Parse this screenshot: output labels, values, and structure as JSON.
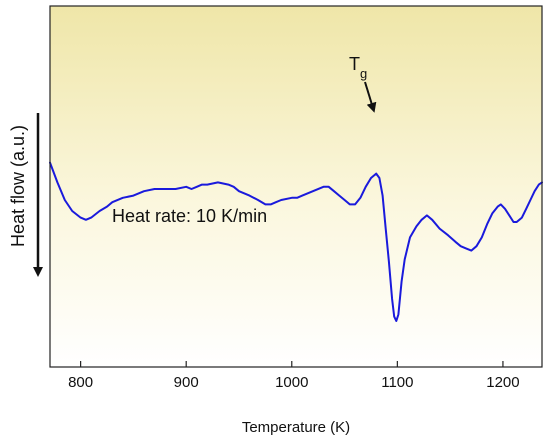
{
  "chart_data": {
    "type": "line",
    "title": "",
    "xlabel": "Temperature (K)",
    "ylabel": "Heat flow (a.u.)",
    "ylabel_arrow": "down",
    "xlim": [
      771,
      1237
    ],
    "ylim": [
      0,
      100
    ],
    "y_ticks_shown": false,
    "grid": false,
    "background": "vertical gradient, pale yellow (top) to white (bottom)",
    "x_ticks": [
      800,
      900,
      1000,
      1100,
      1200
    ],
    "annotations": {
      "tg_main": "T",
      "tg_sub": "g",
      "tg_x": 1080,
      "heat_rate": "Heat rate: 10 K/min"
    },
    "series": [
      {
        "color": "#1a1adc",
        "points": [
          [
            771,
            72
          ],
          [
            778,
            63
          ],
          [
            785,
            55
          ],
          [
            792,
            50
          ],
          [
            800,
            47
          ],
          [
            805,
            46
          ],
          [
            810,
            47
          ],
          [
            818,
            50
          ],
          [
            825,
            52
          ],
          [
            830,
            54
          ],
          [
            840,
            56
          ],
          [
            850,
            57
          ],
          [
            860,
            59
          ],
          [
            870,
            60
          ],
          [
            880,
            60
          ],
          [
            890,
            60
          ],
          [
            900,
            61
          ],
          [
            905,
            60
          ],
          [
            910,
            61
          ],
          [
            915,
            62
          ],
          [
            920,
            62
          ],
          [
            930,
            63
          ],
          [
            940,
            62
          ],
          [
            945,
            61
          ],
          [
            950,
            59
          ],
          [
            960,
            57
          ],
          [
            968,
            55
          ],
          [
            975,
            53
          ],
          [
            980,
            53
          ],
          [
            985,
            54
          ],
          [
            990,
            55
          ],
          [
            1000,
            56
          ],
          [
            1005,
            56
          ],
          [
            1010,
            57
          ],
          [
            1020,
            59
          ],
          [
            1030,
            61
          ],
          [
            1035,
            61
          ],
          [
            1040,
            59
          ],
          [
            1045,
            57
          ],
          [
            1050,
            55
          ],
          [
            1055,
            53
          ],
          [
            1060,
            53
          ],
          [
            1065,
            56
          ],
          [
            1070,
            61
          ],
          [
            1075,
            65
          ],
          [
            1080,
            67
          ],
          [
            1083,
            65
          ],
          [
            1086,
            57
          ],
          [
            1089,
            42
          ],
          [
            1092,
            27
          ],
          [
            1095,
            10
          ],
          [
            1097,
            2
          ],
          [
            1099,
            0
          ],
          [
            1101,
            3
          ],
          [
            1104,
            18
          ],
          [
            1107,
            28
          ],
          [
            1112,
            38
          ],
          [
            1118,
            43
          ],
          [
            1123,
            46
          ],
          [
            1128,
            48
          ],
          [
            1133,
            46
          ],
          [
            1140,
            42
          ],
          [
            1148,
            39
          ],
          [
            1155,
            36
          ],
          [
            1160,
            34
          ],
          [
            1165,
            33
          ],
          [
            1170,
            32
          ],
          [
            1175,
            34
          ],
          [
            1180,
            38
          ],
          [
            1185,
            44
          ],
          [
            1190,
            49
          ],
          [
            1195,
            52
          ],
          [
            1198,
            53
          ],
          [
            1202,
            51
          ],
          [
            1206,
            48
          ],
          [
            1210,
            45
          ],
          [
            1213,
            45
          ],
          [
            1218,
            47
          ],
          [
            1222,
            51
          ],
          [
            1226,
            55
          ],
          [
            1230,
            59
          ],
          [
            1234,
            62
          ],
          [
            1237,
            63
          ]
        ]
      }
    ]
  }
}
